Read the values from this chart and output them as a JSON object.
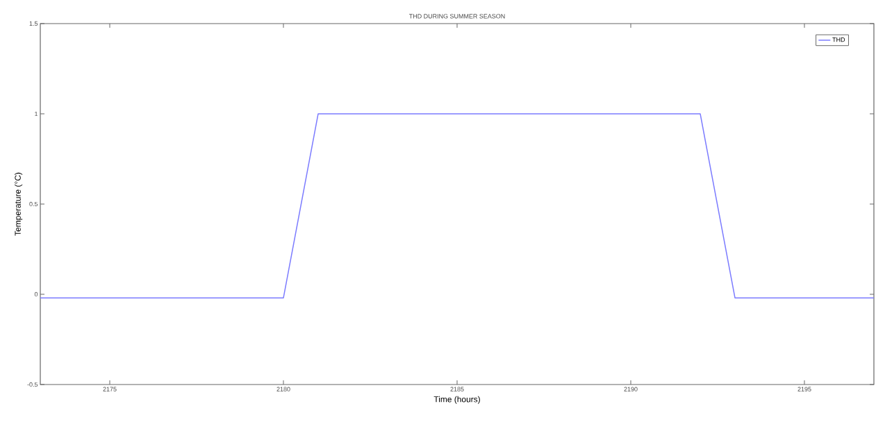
{
  "chart_data": {
    "type": "line",
    "title": "THD DURING SUMMER SEASON",
    "xlabel": "Time (hours)",
    "ylabel": "Temperature (°C)",
    "x": [
      2173,
      2180,
      2181,
      2192,
      2193,
      2197
    ],
    "series": [
      {
        "name": "THD",
        "color": "#7b7bff",
        "values": [
          -0.02,
          -0.02,
          1,
          1,
          -0.02,
          -0.02
        ]
      }
    ],
    "xlim": [
      2173,
      2197
    ],
    "xticks": [
      2175,
      2180,
      2185,
      2190,
      2195
    ],
    "ylim": [
      -0.5,
      1.5
    ],
    "yticks": [
      -0.5,
      0,
      0.5,
      1,
      1.5
    ],
    "grid": false,
    "legend": "top right",
    "marker": "none",
    "line_style": "solid"
  }
}
